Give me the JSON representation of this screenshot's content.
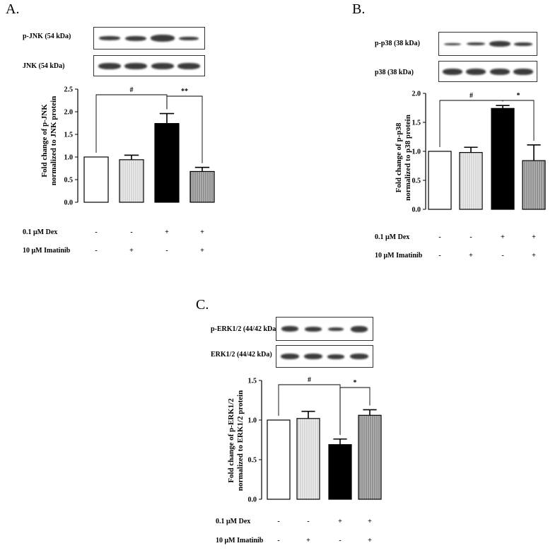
{
  "panels": [
    {
      "letter": "A.",
      "blots": [
        "p-JNK (54 kDa)",
        "JNK (54 kDa)"
      ],
      "treatments": [
        {
          "label": "0.1 μM Dex",
          "signs": [
            "-",
            "-",
            "+",
            "+"
          ]
        },
        {
          "label": "10 μM Imatinib",
          "signs": [
            "-",
            "+",
            "-",
            "+"
          ]
        }
      ],
      "ylabel_line1": "Fold change of p-JNK",
      "ylabel_line2": "normalized to JNK protein"
    },
    {
      "letter": "B.",
      "blots": [
        "p-p38 (38 kDa)",
        "p38 (38 kDa)"
      ],
      "treatments": [
        {
          "label": "0.1 μM Dex",
          "signs": [
            "-",
            "-",
            "+",
            "+"
          ]
        },
        {
          "label": "10 μM Imatinib",
          "signs": [
            "-",
            "+",
            "-",
            "+"
          ]
        }
      ],
      "ylabel_line1": "Fold change of p-p38",
      "ylabel_line2": "normalized to p38 protein"
    },
    {
      "letter": "C.",
      "blots": [
        "p-ERK1/2 (44/42 kDa)",
        "ERK1/2 (44/42 kDa)"
      ],
      "treatments": [
        {
          "label": "0.1 μM Dex",
          "signs": [
            "-",
            "-",
            "+",
            "+"
          ]
        },
        {
          "label": "10 μM Imatinib",
          "signs": [
            "-",
            "+",
            "-",
            "+"
          ]
        }
      ],
      "ylabel_line1": "Fold change of p-ERK1/2",
      "ylabel_line2": "normalized to ERK1/2 protein"
    }
  ],
  "colors": {
    "control": "#ffffff",
    "imatinib": "#f0f0f0",
    "dex": "#000000",
    "dex_imatinib": "#b8b8b8",
    "band": "#1a1a1a"
  },
  "chart_data": [
    {
      "type": "bar",
      "ylabel": "Fold change of p-JNK normalized to JNK protein",
      "ylim": [
        0,
        2.5
      ],
      "yticks": [
        "0.0",
        "0.5",
        "1.0",
        "1.5",
        "2.0",
        "2.5"
      ],
      "values": [
        1.0,
        0.94,
        1.74,
        0.68
      ],
      "errors": [
        0.0,
        0.1,
        0.22,
        0.09
      ],
      "bar_styles": [
        "white",
        "vertical-lines",
        "black",
        "vertical-lines-gray"
      ],
      "significance": [
        {
          "from": 0,
          "to": 2,
          "label": "#"
        },
        {
          "from": 2,
          "to": 3,
          "label": "**"
        }
      ],
      "grid": false
    },
    {
      "type": "bar",
      "ylabel": "Fold change of p-p38 normalized to p38 protein",
      "ylim": [
        0,
        2.0
      ],
      "yticks": [
        "0.0",
        "0.5",
        "1.0",
        "1.5",
        "2.0"
      ],
      "values": [
        1.0,
        0.98,
        1.74,
        0.84
      ],
      "errors": [
        0.0,
        0.09,
        0.05,
        0.27
      ],
      "bar_styles": [
        "white",
        "vertical-lines",
        "black",
        "vertical-lines-gray"
      ],
      "significance": [
        {
          "from": 0,
          "to": 2,
          "label": "#"
        },
        {
          "from": 2,
          "to": 3,
          "label": "*"
        }
      ],
      "grid": false
    },
    {
      "type": "bar",
      "ylabel": "Fold change of p-ERK1/2 normalized to ERK1/2 protein",
      "ylim": [
        0,
        1.5
      ],
      "yticks": [
        "0.0",
        "0.5",
        "1.0",
        "1.5"
      ],
      "values": [
        1.0,
        1.02,
        0.69,
        1.06
      ],
      "errors": [
        0.0,
        0.09,
        0.07,
        0.07
      ],
      "bar_styles": [
        "white",
        "vertical-lines",
        "black",
        "vertical-lines-gray"
      ],
      "significance": [
        {
          "from": 0,
          "to": 2,
          "label": "#"
        },
        {
          "from": 2,
          "to": 3,
          "label": "*"
        }
      ],
      "grid": false
    }
  ]
}
